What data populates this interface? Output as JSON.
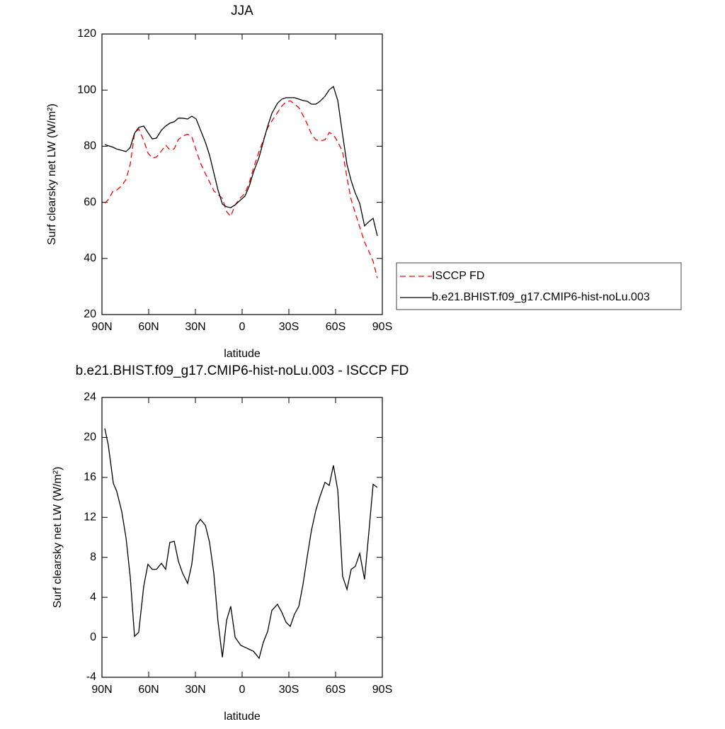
{
  "chart_data": [
    {
      "type": "line",
      "title": "JJA",
      "xlabel": "latitude",
      "ylabel": "Surf clearsky net LW (W/m²)",
      "x": [
        88.2,
        86,
        82.7,
        80.5,
        77.3,
        74.5,
        71.8,
        69.1,
        66.4,
        63.2,
        60.5,
        57.7,
        55,
        51.8,
        49.1,
        46.4,
        43.6,
        40.9,
        38.2,
        35,
        32.3,
        29.5,
        26.8,
        23.6,
        20.9,
        18.2,
        15.5,
        12.7,
        10,
        7.3,
        4.5,
        0.9,
        -1.8,
        -4.5,
        -7.3,
        -10.9,
        -13.6,
        -16.4,
        -19.1,
        -22.7,
        -25.5,
        -28.2,
        -30.9,
        -33.6,
        -36.4,
        -39.1,
        -41.8,
        -44.5,
        -47.3,
        -50,
        -53.2,
        -55.9,
        -58.6,
        -61.4,
        -64.5,
        -67.3,
        -70,
        -72.7,
        -75.5,
        -78.6,
        -81.4,
        -84.1,
        -86.8
      ],
      "series": [
        {
          "name": "ISCCP FD",
          "color": "#ff0000",
          "line_style": "dashed",
          "values": [
            59.7,
            60.9,
            64.2,
            64.4,
            65.9,
            68.2,
            73.6,
            84.5,
            86.2,
            82.1,
            77.6,
            75.8,
            76.1,
            78.3,
            80.4,
            78.7,
            79.1,
            82.4,
            83.6,
            84.3,
            83.4,
            78.5,
            74.1,
            70.2,
            67.3,
            64.1,
            62.8,
            61.4,
            56.7,
            55.0,
            59.1,
            61.7,
            63.2,
            66.9,
            72.2,
            78.2,
            82.1,
            86.6,
            89.0,
            92.0,
            94.3,
            95.8,
            96.2,
            95.0,
            93.7,
            91.0,
            87.9,
            84.3,
            82.3,
            81.9,
            82.3,
            84.9,
            84.1,
            81.6,
            78.0,
            68.7,
            60.9,
            56.1,
            51.2,
            45.8,
            42.5,
            39.0,
            33.0
          ]
        },
        {
          "name": "b.e21.BHIST.f09_g17.CMIP6-hist-noLu.003",
          "color": "#000000",
          "line_style": "solid",
          "values": [
            80.6,
            80.2,
            79.6,
            79.0,
            78.5,
            78.1,
            79.6,
            84.6,
            86.7,
            87.2,
            84.9,
            82.6,
            82.9,
            85.7,
            87.2,
            88.2,
            88.7,
            90,
            90,
            89.7,
            90.7,
            89.7,
            85.9,
            81.4,
            76.8,
            70.5,
            64.4,
            59.4,
            58.4,
            58.1,
            59.1,
            60.9,
            62.2,
            65.7,
            70.8,
            76.1,
            81.6,
            87.2,
            91.7,
            95.3,
            96.8,
            97.3,
            97.3,
            97.3,
            96.8,
            96.3,
            96,
            95,
            95,
            96,
            97.8,
            100.1,
            101.3,
            96.3,
            84.1,
            73.5,
            67.7,
            63.2,
            59.6,
            51.6,
            53.1,
            54.3,
            48.0
          ]
        }
      ],
      "xlim": [
        90,
        -90
      ],
      "xticks": [
        {
          "value": 90,
          "label": "90N"
        },
        {
          "value": 60,
          "label": "60N"
        },
        {
          "value": 30,
          "label": "30N"
        },
        0,
        {
          "value": -30,
          "label": "30S"
        },
        {
          "value": -60,
          "label": "60S"
        },
        {
          "value": -90,
          "label": "90S"
        }
      ],
      "ylim": [
        20,
        120
      ],
      "yticks": [
        20,
        40,
        60,
        80,
        100,
        120
      ]
    },
    {
      "type": "line",
      "title": "b.e21.BHIST.f09_g17.CMIP6-hist-noLu.003 - ISCCP FD",
      "xlabel": "latitude",
      "ylabel": "Surf clearsky net LW (W/m²)",
      "x": [
        88.2,
        86,
        82.7,
        80.5,
        77.3,
        74.5,
        71.8,
        69.1,
        66.4,
        63.2,
        60.5,
        57.7,
        55,
        51.8,
        49.1,
        46.4,
        43.6,
        40.9,
        38.2,
        35,
        32.3,
        29.5,
        26.8,
        23.6,
        20.9,
        18.2,
        15.5,
        12.7,
        10,
        7.3,
        4.5,
        0.9,
        -1.8,
        -4.5,
        -7.3,
        -10.9,
        -13.6,
        -16.4,
        -19.1,
        -22.7,
        -25.5,
        -28.2,
        -30.9,
        -33.6,
        -36.4,
        -39.1,
        -41.8,
        -44.5,
        -47.3,
        -50,
        -53.2,
        -55.9,
        -58.6,
        -61.4,
        -64.5,
        -67.3,
        -70,
        -72.7,
        -75.5,
        -78.6,
        -81.4,
        -84.1,
        -86.8
      ],
      "values": [
        20.9,
        19.3,
        15.4,
        14.6,
        12.6,
        9.9,
        6.0,
        0.1,
        0.5,
        5.1,
        7.3,
        6.8,
        6.8,
        7.4,
        6.8,
        9.5,
        9.6,
        7.6,
        6.4,
        5.4,
        7.3,
        11.2,
        11.8,
        11.2,
        9.5,
        6.4,
        1.6,
        -2.0,
        1.7,
        3.1,
        0.0,
        -0.8,
        -1.0,
        -1.2,
        -1.4,
        -2.1,
        -0.5,
        0.6,
        2.7,
        3.3,
        2.5,
        1.5,
        1.1,
        2.3,
        3.1,
        5.3,
        8.1,
        10.7,
        12.7,
        14.1,
        15.5,
        15.2,
        17.2,
        14.7,
        6.1,
        4.8,
        6.8,
        7.1,
        8.4,
        5.8,
        10.6,
        15.3,
        15.0
      ],
      "color": "#000000",
      "line_style": "solid",
      "xlim": [
        90,
        -90
      ],
      "xticks": [
        {
          "value": 90,
          "label": "90N"
        },
        {
          "value": 60,
          "label": "60N"
        },
        {
          "value": 30,
          "label": "30N"
        },
        0,
        {
          "value": -30,
          "label": "30S"
        },
        {
          "value": -60,
          "label": "60S"
        },
        {
          "value": -90,
          "label": "90S"
        }
      ],
      "ylim": [
        -4,
        24
      ],
      "yticks": [
        -4,
        0,
        4,
        8,
        12,
        16,
        20,
        24
      ]
    }
  ]
}
